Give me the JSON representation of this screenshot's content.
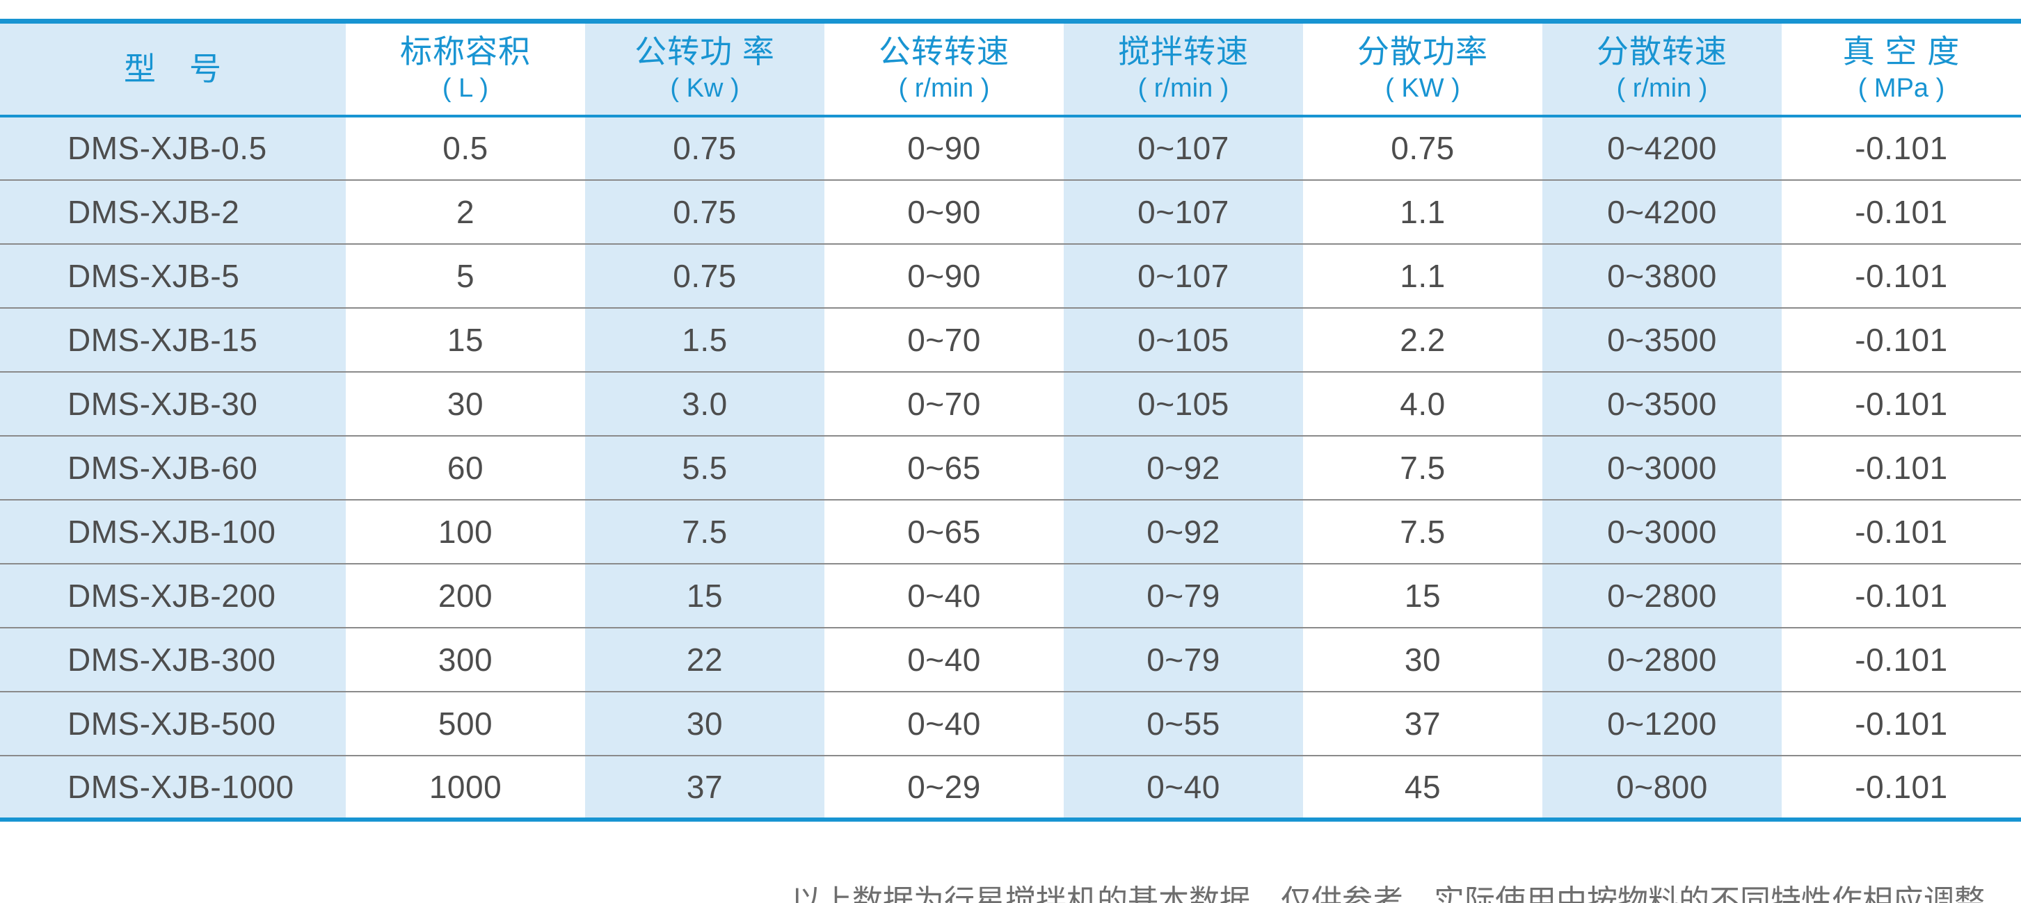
{
  "colors": {
    "accent_blue": "#1894d2",
    "stripe_blue": "#d8eaf7",
    "body_text": "#4d4d4d",
    "row_line": "#8a8a8a",
    "note_text": "#6e6e6e"
  },
  "table": {
    "columns": [
      {
        "title": "型　号",
        "unit": ""
      },
      {
        "title": "标称容积",
        "unit": "( L )"
      },
      {
        "title": "公转功 率",
        "unit": "( Kw )"
      },
      {
        "title": "公转转速",
        "unit": "( r/min )"
      },
      {
        "title": "搅拌转速",
        "unit": "( r/min )"
      },
      {
        "title": "分散功率",
        "unit": "( KW )"
      },
      {
        "title": "分散转速",
        "unit": "( r/min )"
      },
      {
        "title": "真 空 度",
        "unit": "( MPa )"
      }
    ],
    "rows": [
      [
        "DMS-XJB-0.5",
        "0.5",
        "0.75",
        "0~90",
        "0~107",
        "0.75",
        "0~4200",
        "-0.101"
      ],
      [
        "DMS-XJB-2",
        "2",
        "0.75",
        "0~90",
        "0~107",
        "1.1",
        "0~4200",
        "-0.101"
      ],
      [
        "DMS-XJB-5",
        "5",
        "0.75",
        "0~90",
        "0~107",
        "1.1",
        "0~3800",
        "-0.101"
      ],
      [
        "DMS-XJB-15",
        "15",
        "1.5",
        "0~70",
        "0~105",
        "2.2",
        "0~3500",
        "-0.101"
      ],
      [
        "DMS-XJB-30",
        "30",
        "3.0",
        "0~70",
        "0~105",
        "4.0",
        "0~3500",
        "-0.101"
      ],
      [
        "DMS-XJB-60",
        "60",
        "5.5",
        "0~65",
        "0~92",
        "7.5",
        "0~3000",
        "-0.101"
      ],
      [
        "DMS-XJB-100",
        "100",
        "7.5",
        "0~65",
        "0~92",
        "7.5",
        "0~3000",
        "-0.101"
      ],
      [
        "DMS-XJB-200",
        "200",
        "15",
        "0~40",
        "0~79",
        "15",
        "0~2800",
        "-0.101"
      ],
      [
        "DMS-XJB-300",
        "300",
        "22",
        "0~40",
        "0~79",
        "30",
        "0~2800",
        "-0.101"
      ],
      [
        "DMS-XJB-500",
        "500",
        "30",
        "0~40",
        "0~55",
        "37",
        "0~1200",
        "-0.101"
      ],
      [
        "DMS-XJB-1000",
        "1000",
        "37",
        "0~29",
        "0~40",
        "45",
        "0~800",
        "-0.101"
      ]
    ]
  },
  "footer": {
    "note": "以上数据为行星搅拌机的基本数据，仅供参考，实际使用中按物料的不同特性作相应调整。"
  }
}
